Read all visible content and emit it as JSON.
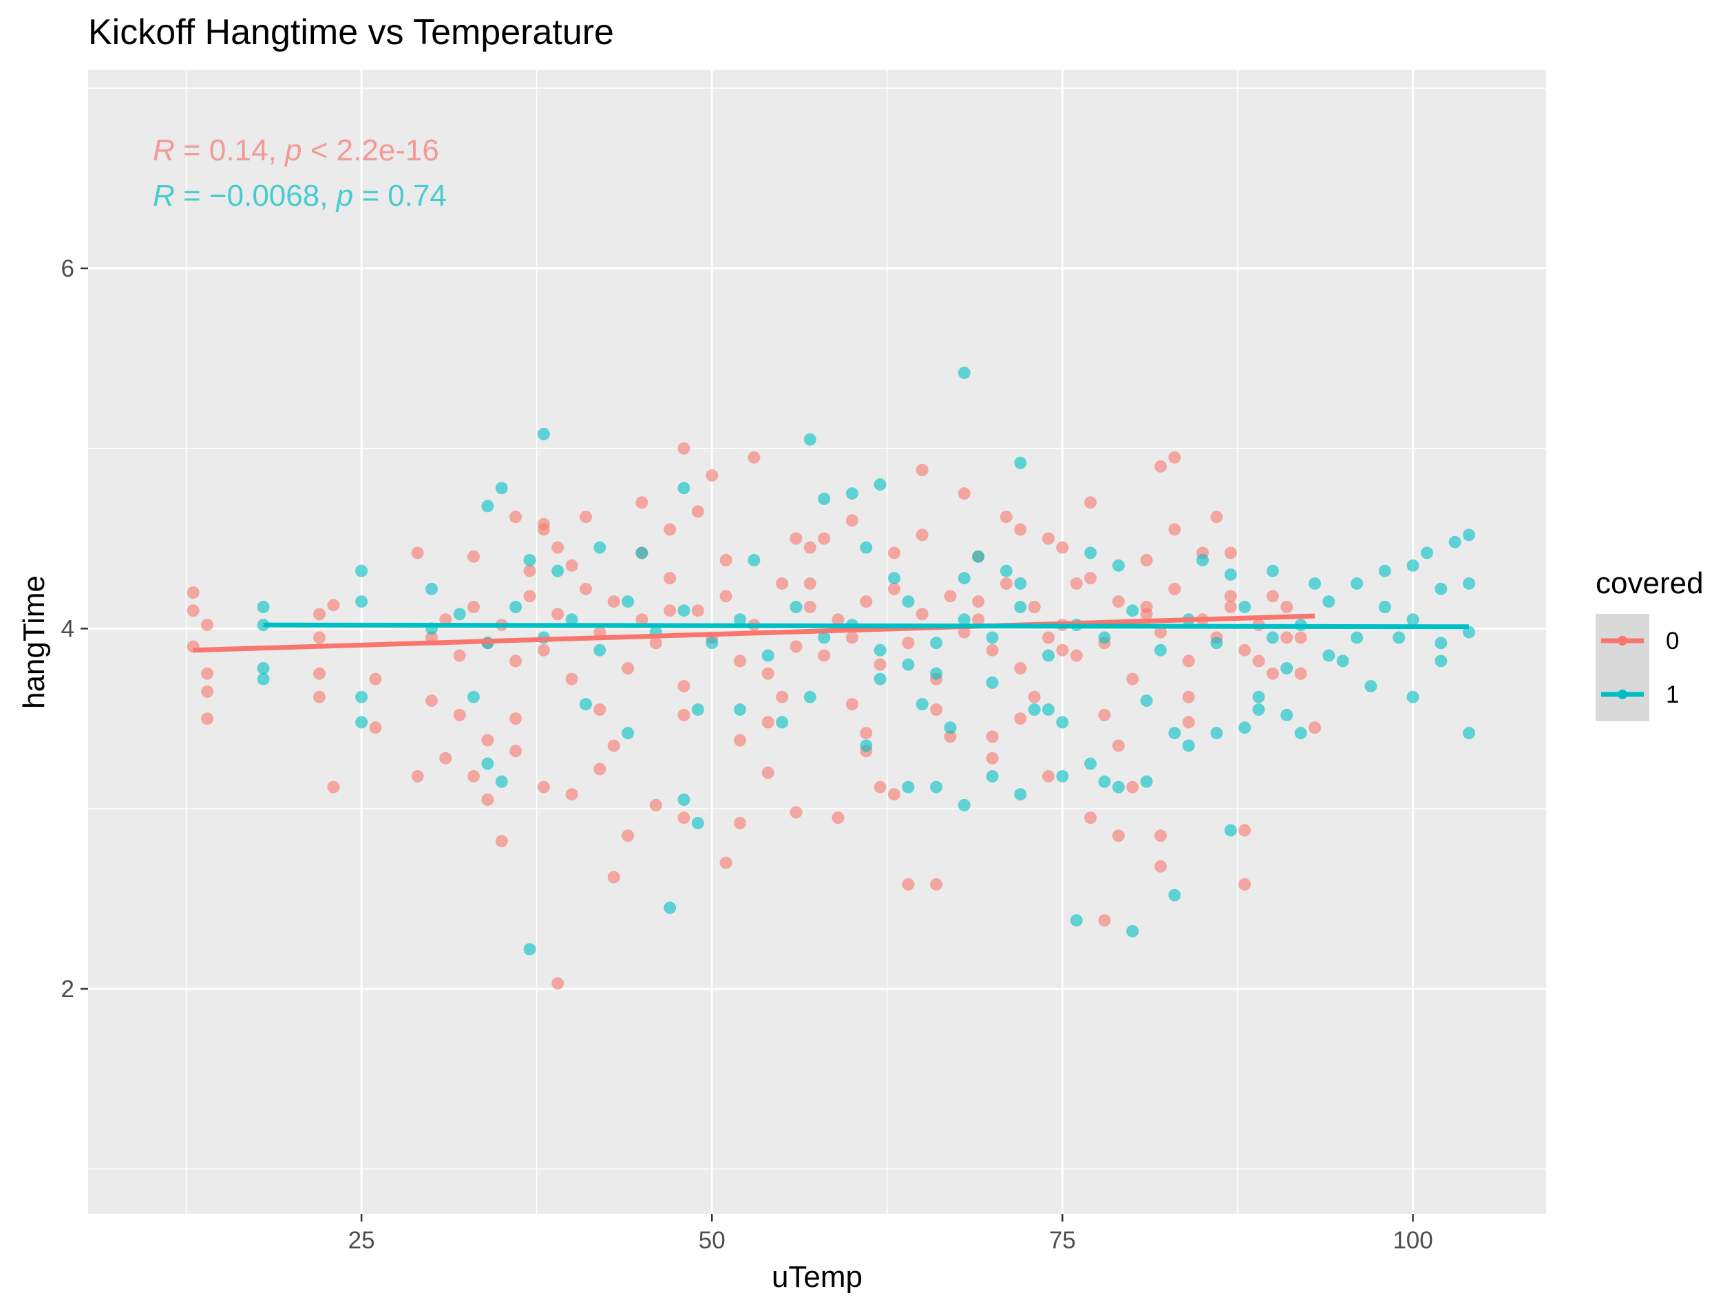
{
  "chart_data": {
    "type": "scatter",
    "title": "Kickoff Hangtime vs Temperature",
    "xlabel": "uTemp",
    "ylabel": "hangTime",
    "xlim": [
      5.5,
      109.5
    ],
    "ylim": [
      0.75,
      7.1
    ],
    "x_ticks": [
      25,
      50,
      75,
      100
    ],
    "x_tick_labels": [
      "25",
      "50",
      "75",
      "100"
    ],
    "y_ticks": [
      2,
      4,
      6
    ],
    "y_tick_labels": [
      "2",
      "4",
      "6"
    ],
    "grid": true,
    "legend": {
      "title": "covered",
      "position": "right",
      "entries": [
        "0",
        "1"
      ]
    },
    "stat_labels": [
      {
        "series": "0",
        "R": "0.14",
        "p": "< 2.2e-16",
        "color": "#F8766D"
      },
      {
        "series": "1",
        "R": "−0.0068",
        "p": "= 0.74",
        "color": "#00BFC4"
      }
    ],
    "series": [
      {
        "name": "0",
        "color": "#F8766D",
        "trend": {
          "x": [
            13,
            93
          ],
          "y": [
            3.88,
            4.07
          ]
        },
        "points": [
          [
            13,
            4.2
          ],
          [
            13,
            4.1
          ],
          [
            13,
            3.9
          ],
          [
            14,
            3.75
          ],
          [
            14,
            3.65
          ],
          [
            14,
            3.5
          ],
          [
            14,
            4.02
          ],
          [
            22,
            4.08
          ],
          [
            22,
            3.95
          ],
          [
            22,
            3.75
          ],
          [
            22,
            3.62
          ],
          [
            23,
            3.12
          ],
          [
            23,
            4.13
          ],
          [
            26,
            3.45
          ],
          [
            26,
            3.72
          ],
          [
            29,
            4.42
          ],
          [
            29,
            3.18
          ],
          [
            31,
            3.28
          ],
          [
            32,
            3.52
          ],
          [
            33,
            3.18
          ],
          [
            34,
            3.05
          ],
          [
            35,
            2.82
          ],
          [
            36,
            3.32
          ],
          [
            36,
            4.62
          ],
          [
            37,
            4.32
          ],
          [
            38,
            3.12
          ],
          [
            38,
            4.55
          ],
          [
            39,
            2.03
          ],
          [
            40,
            3.08
          ],
          [
            40,
            4.35
          ],
          [
            41,
            4.62
          ],
          [
            42,
            3.22
          ],
          [
            43,
            2.62
          ],
          [
            44,
            2.85
          ],
          [
            45,
            4.7
          ],
          [
            46,
            3.02
          ],
          [
            47,
            4.1
          ],
          [
            48,
            2.95
          ],
          [
            48,
            5.0
          ],
          [
            49,
            4.65
          ],
          [
            50,
            4.85
          ],
          [
            51,
            2.7
          ],
          [
            52,
            2.92
          ],
          [
            53,
            4.95
          ],
          [
            54,
            3.2
          ],
          [
            55,
            3.62
          ],
          [
            56,
            2.98
          ],
          [
            57,
            4.25
          ],
          [
            58,
            4.5
          ],
          [
            59,
            2.95
          ],
          [
            60,
            4.6
          ],
          [
            61,
            3.32
          ],
          [
            62,
            3.12
          ],
          [
            63,
            3.08
          ],
          [
            64,
            2.58
          ],
          [
            65,
            4.88
          ],
          [
            66,
            2.58
          ],
          [
            67,
            3.4
          ],
          [
            68,
            4.75
          ],
          [
            69,
            4.15
          ],
          [
            70,
            3.28
          ],
          [
            71,
            4.62
          ],
          [
            72,
            4.55
          ],
          [
            73,
            3.62
          ],
          [
            74,
            3.18
          ],
          [
            75,
            3.88
          ],
          [
            76,
            4.25
          ],
          [
            77,
            2.95
          ],
          [
            77,
            4.7
          ],
          [
            78,
            2.38
          ],
          [
            79,
            2.85
          ],
          [
            80,
            3.12
          ],
          [
            81,
            4.12
          ],
          [
            82,
            2.68
          ],
          [
            82,
            2.85
          ],
          [
            82,
            4.9
          ],
          [
            83,
            4.95
          ],
          [
            84,
            3.62
          ],
          [
            85,
            4.42
          ],
          [
            86,
            4.62
          ],
          [
            87,
            4.12
          ],
          [
            88,
            2.58
          ],
          [
            88,
            2.88
          ],
          [
            89,
            3.82
          ],
          [
            90,
            4.18
          ],
          [
            91,
            3.95
          ],
          [
            92,
            3.75
          ],
          [
            93,
            3.45
          ],
          [
            30,
            3.95
          ],
          [
            31,
            4.05
          ],
          [
            32,
            3.85
          ],
          [
            33,
            4.12
          ],
          [
            34,
            3.92
          ],
          [
            35,
            4.02
          ],
          [
            36,
            3.82
          ],
          [
            37,
            4.18
          ],
          [
            38,
            3.88
          ],
          [
            39,
            4.08
          ],
          [
            40,
            3.72
          ],
          [
            41,
            4.22
          ],
          [
            42,
            3.98
          ],
          [
            43,
            4.15
          ],
          [
            44,
            3.78
          ],
          [
            45,
            4.05
          ],
          [
            46,
            3.92
          ],
          [
            47,
            4.28
          ],
          [
            48,
            3.68
          ],
          [
            49,
            4.1
          ],
          [
            50,
            3.95
          ],
          [
            51,
            4.18
          ],
          [
            52,
            3.82
          ],
          [
            53,
            4.02
          ],
          [
            54,
            3.75
          ],
          [
            55,
            4.25
          ],
          [
            56,
            3.9
          ],
          [
            57,
            4.12
          ],
          [
            58,
            3.85
          ],
          [
            59,
            4.05
          ],
          [
            60,
            3.95
          ],
          [
            61,
            4.15
          ],
          [
            62,
            3.8
          ],
          [
            63,
            4.22
          ],
          [
            64,
            3.92
          ],
          [
            65,
            4.08
          ],
          [
            66,
            3.72
          ],
          [
            67,
            4.18
          ],
          [
            68,
            3.98
          ],
          [
            69,
            4.05
          ],
          [
            70,
            3.88
          ],
          [
            71,
            4.25
          ],
          [
            72,
            3.78
          ],
          [
            73,
            4.12
          ],
          [
            74,
            3.95
          ],
          [
            75,
            4.02
          ],
          [
            76,
            3.85
          ],
          [
            77,
            4.28
          ],
          [
            78,
            3.92
          ],
          [
            79,
            4.15
          ],
          [
            80,
            3.72
          ],
          [
            81,
            4.08
          ],
          [
            82,
            3.98
          ],
          [
            83,
            4.22
          ],
          [
            84,
            3.82
          ],
          [
            85,
            4.05
          ],
          [
            86,
            3.95
          ],
          [
            87,
            4.18
          ],
          [
            88,
            3.88
          ],
          [
            89,
            4.02
          ],
          [
            90,
            3.75
          ],
          [
            91,
            4.12
          ],
          [
            92,
            3.95
          ],
          [
            30,
            3.6
          ],
          [
            33,
            4.4
          ],
          [
            36,
            3.5
          ],
          [
            39,
            4.45
          ],
          [
            42,
            3.55
          ],
          [
            45,
            4.42
          ],
          [
            48,
            3.52
          ],
          [
            51,
            4.38
          ],
          [
            54,
            3.48
          ],
          [
            57,
            4.45
          ],
          [
            60,
            3.58
          ],
          [
            63,
            4.42
          ],
          [
            66,
            3.55
          ],
          [
            69,
            4.4
          ],
          [
            72,
            3.5
          ],
          [
            75,
            4.45
          ],
          [
            78,
            3.52
          ],
          [
            81,
            4.38
          ],
          [
            84,
            3.48
          ],
          [
            87,
            4.42
          ],
          [
            34,
            3.38
          ],
          [
            38,
            4.58
          ],
          [
            43,
            3.35
          ],
          [
            47,
            4.55
          ],
          [
            52,
            3.38
          ],
          [
            56,
            4.5
          ],
          [
            61,
            3.42
          ],
          [
            65,
            4.52
          ],
          [
            70,
            3.4
          ],
          [
            74,
            4.5
          ],
          [
            79,
            3.35
          ],
          [
            83,
            4.55
          ]
        ]
      },
      {
        "name": "1",
        "color": "#00BFC4",
        "trend": {
          "x": [
            18,
            104
          ],
          "y": [
            4.02,
            4.01
          ]
        },
        "points": [
          [
            18,
            4.12
          ],
          [
            18,
            4.02
          ],
          [
            18,
            3.78
          ],
          [
            18,
            3.72
          ],
          [
            25,
            4.32
          ],
          [
            25,
            4.15
          ],
          [
            25,
            3.48
          ],
          [
            25,
            3.62
          ],
          [
            30,
            4.22
          ],
          [
            34,
            4.68
          ],
          [
            35,
            4.78
          ],
          [
            34,
            3.25
          ],
          [
            35,
            3.15
          ],
          [
            37,
            2.22
          ],
          [
            38,
            5.08
          ],
          [
            39,
            4.32
          ],
          [
            42,
            4.45
          ],
          [
            44,
            3.42
          ],
          [
            47,
            2.45
          ],
          [
            48,
            4.78
          ],
          [
            48,
            3.05
          ],
          [
            49,
            2.92
          ],
          [
            52,
            3.55
          ],
          [
            55,
            3.48
          ],
          [
            57,
            5.05
          ],
          [
            58,
            4.72
          ],
          [
            60,
            4.75
          ],
          [
            62,
            4.8
          ],
          [
            64,
            3.12
          ],
          [
            66,
            3.12
          ],
          [
            68,
            3.02
          ],
          [
            68,
            5.42
          ],
          [
            70,
            3.18
          ],
          [
            72,
            4.92
          ],
          [
            72,
            3.08
          ],
          [
            74,
            3.55
          ],
          [
            75,
            3.18
          ],
          [
            76,
            2.38
          ],
          [
            77,
            3.25
          ],
          [
            78,
            3.15
          ],
          [
            79,
            3.12
          ],
          [
            80,
            2.32
          ],
          [
            81,
            3.15
          ],
          [
            83,
            2.52
          ],
          [
            84,
            3.35
          ],
          [
            86,
            3.42
          ],
          [
            87,
            2.88
          ],
          [
            88,
            3.45
          ],
          [
            89,
            3.62
          ],
          [
            90,
            4.32
          ],
          [
            91,
            3.78
          ],
          [
            92,
            3.42
          ],
          [
            93,
            4.25
          ],
          [
            94,
            4.15
          ],
          [
            95,
            3.82
          ],
          [
            96,
            4.25
          ],
          [
            97,
            3.68
          ],
          [
            98,
            4.32
          ],
          [
            99,
            3.95
          ],
          [
            100,
            4.35
          ],
          [
            100,
            3.62
          ],
          [
            101,
            4.42
          ],
          [
            102,
            3.82
          ],
          [
            102,
            4.22
          ],
          [
            103,
            4.48
          ],
          [
            104,
            4.52
          ],
          [
            104,
            4.25
          ],
          [
            104,
            3.98
          ],
          [
            104,
            3.42
          ],
          [
            94,
            3.85
          ],
          [
            96,
            3.95
          ],
          [
            98,
            4.12
          ],
          [
            100,
            4.05
          ],
          [
            102,
            3.92
          ],
          [
            30,
            4.0
          ],
          [
            32,
            4.08
          ],
          [
            34,
            3.92
          ],
          [
            36,
            4.12
          ],
          [
            38,
            3.95
          ],
          [
            40,
            4.05
          ],
          [
            42,
            3.88
          ],
          [
            44,
            4.15
          ],
          [
            46,
            3.98
          ],
          [
            48,
            4.1
          ],
          [
            50,
            3.92
          ],
          [
            52,
            4.05
          ],
          [
            54,
            3.85
          ],
          [
            56,
            4.12
          ],
          [
            58,
            3.95
          ],
          [
            60,
            4.02
          ],
          [
            62,
            3.88
          ],
          [
            64,
            4.15
          ],
          [
            66,
            3.92
          ],
          [
            68,
            4.05
          ],
          [
            70,
            3.95
          ],
          [
            72,
            4.12
          ],
          [
            74,
            3.85
          ],
          [
            76,
            4.02
          ],
          [
            78,
            3.95
          ],
          [
            80,
            4.1
          ],
          [
            82,
            3.88
          ],
          [
            84,
            4.05
          ],
          [
            86,
            3.92
          ],
          [
            88,
            4.12
          ],
          [
            90,
            3.95
          ],
          [
            92,
            4.02
          ],
          [
            33,
            3.62
          ],
          [
            37,
            4.38
          ],
          [
            41,
            3.58
          ],
          [
            45,
            4.42
          ],
          [
            49,
            3.55
          ],
          [
            53,
            4.38
          ],
          [
            57,
            3.62
          ],
          [
            61,
            4.45
          ],
          [
            65,
            3.58
          ],
          [
            69,
            4.4
          ],
          [
            73,
            3.55
          ],
          [
            77,
            4.42
          ],
          [
            81,
            3.6
          ],
          [
            85,
            4.38
          ],
          [
            89,
            3.55
          ],
          [
            61,
            3.35
          ],
          [
            63,
            4.28
          ],
          [
            67,
            3.45
          ],
          [
            71,
            4.32
          ],
          [
            75,
            3.48
          ],
          [
            79,
            4.35
          ],
          [
            83,
            3.42
          ],
          [
            87,
            4.3
          ],
          [
            91,
            3.52
          ],
          [
            62,
            3.72
          ],
          [
            64,
            3.8
          ],
          [
            66,
            3.75
          ],
          [
            68,
            4.28
          ],
          [
            70,
            3.7
          ],
          [
            72,
            4.25
          ]
        ]
      }
    ]
  }
}
